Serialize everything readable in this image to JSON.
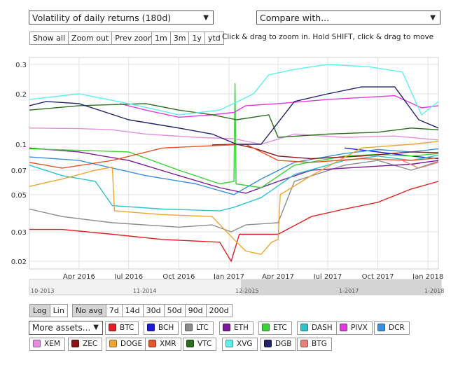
{
  "controls": {
    "metric_select": "Volatility of daily returns (180d)",
    "compare_select": "Compare with...",
    "zoom_buttons": [
      "Show all",
      "Zoom out",
      "Prev zoom"
    ],
    "range_buttons": [
      "1m",
      "3m",
      "1y",
      "ytd"
    ],
    "hint": "Click & drag to zoom in. Hold SHIFT, click & drag to move",
    "scale_buttons": [
      "Log",
      "Lin"
    ],
    "avg_buttons": [
      "No avg",
      "7d",
      "14d",
      "30d",
      "50d",
      "90d",
      "200d"
    ],
    "more_assets": "More assets..."
  },
  "assets": [
    {
      "label": "BTC",
      "color": "#e02020"
    },
    {
      "label": "BCH",
      "color": "#1c1cd6"
    },
    {
      "label": "LTC",
      "color": "#8c8c8c"
    },
    {
      "label": "ETH",
      "color": "#7b1a9a"
    },
    {
      "label": "ETC",
      "color": "#3ad43a"
    },
    {
      "label": "DASH",
      "color": "#2cc4c9"
    },
    {
      "label": "PIVX",
      "color": "#e03ae0"
    },
    {
      "label": "DCR",
      "color": "#3a8fe0"
    },
    {
      "label": "XEM",
      "color": "#e58ee0"
    },
    {
      "label": "ZEC",
      "color": "#8a1515"
    },
    {
      "label": "DOGE",
      "color": "#f0a530"
    },
    {
      "label": "XMR",
      "color": "#e8542a"
    },
    {
      "label": "VTC",
      "color": "#2a6e1e"
    },
    {
      "label": "XVG",
      "color": "#5ef0ee"
    },
    {
      "label": "DGB",
      "color": "#23236a"
    },
    {
      "label": "BTG",
      "color": "#e8807a"
    }
  ],
  "chart_data": {
    "type": "line",
    "scale": "log",
    "ylim": [
      0.018,
      0.33
    ],
    "xlim": [
      "2016-01-01",
      "2018-01-20"
    ],
    "yticks": [
      {
        "value": 0.3,
        "label": "0.3"
      },
      {
        "value": 0.2,
        "label": "0.2"
      },
      {
        "value": 0.1,
        "label": "0.1"
      },
      {
        "value": 0.07,
        "label": "0.07"
      },
      {
        "value": 0.05,
        "label": "0.05"
      },
      {
        "value": 0.03,
        "label": "0.03"
      },
      {
        "value": 0.02,
        "label": "0.02"
      }
    ],
    "xticks": [
      {
        "date": "2016-04-01",
        "label": "Apr 2016"
      },
      {
        "date": "2016-07-01",
        "label": "Jul 2016"
      },
      {
        "date": "2016-10-01",
        "label": "Oct 2016"
      },
      {
        "date": "2017-01-01",
        "label": "Jan 2017"
      },
      {
        "date": "2017-04-01",
        "label": "Apr 2017"
      },
      {
        "date": "2017-07-01",
        "label": "Jul 2017"
      },
      {
        "date": "2017-10-01",
        "label": "Oct 2017"
      },
      {
        "date": "2018-01-01",
        "label": "Jan 2018"
      }
    ],
    "navigator_labels": [
      "10-2013",
      "11-2014",
      "12-2015",
      "1-2017",
      "1-2018"
    ],
    "grid": true,
    "series": [
      {
        "name": "BTC",
        "color": "#e02020",
        "points": [
          [
            "2016-01-01",
            0.031
          ],
          [
            "2016-03-01",
            0.031
          ],
          [
            "2016-06-01",
            0.029
          ],
          [
            "2016-09-01",
            0.027
          ],
          [
            "2016-12-15",
            0.026
          ],
          [
            "2017-01-05",
            0.02
          ],
          [
            "2017-01-20",
            0.029
          ],
          [
            "2017-04-01",
            0.029
          ],
          [
            "2017-06-01",
            0.037
          ],
          [
            "2017-08-01",
            0.041
          ],
          [
            "2017-10-01",
            0.045
          ],
          [
            "2017-12-01",
            0.054
          ],
          [
            "2018-01-20",
            0.06
          ]
        ]
      },
      {
        "name": "BCH",
        "color": "#1c1cd6",
        "points": [
          [
            "2017-08-01",
            0.095
          ],
          [
            "2017-10-01",
            0.09
          ],
          [
            "2017-12-01",
            0.085
          ],
          [
            "2018-01-20",
            0.082
          ]
        ]
      },
      {
        "name": "LTC",
        "color": "#8c8c8c",
        "points": [
          [
            "2016-01-01",
            0.041
          ],
          [
            "2016-03-01",
            0.037
          ],
          [
            "2016-06-01",
            0.034
          ],
          [
            "2016-10-01",
            0.032
          ],
          [
            "2016-12-01",
            0.033
          ],
          [
            "2017-01-05",
            0.03
          ],
          [
            "2017-02-01",
            0.033
          ],
          [
            "2017-04-01",
            0.034
          ],
          [
            "2017-05-01",
            0.06
          ],
          [
            "2017-08-01",
            0.075
          ],
          [
            "2017-10-01",
            0.08
          ],
          [
            "2017-12-01",
            0.07
          ],
          [
            "2018-01-20",
            0.079
          ]
        ]
      },
      {
        "name": "ETH",
        "color": "#7b1a9a",
        "points": [
          [
            "2016-01-01",
            0.095
          ],
          [
            "2016-04-01",
            0.09
          ],
          [
            "2016-07-01",
            0.08
          ],
          [
            "2016-10-01",
            0.065
          ],
          [
            "2016-12-15",
            0.055
          ],
          [
            "2017-02-01",
            0.051
          ],
          [
            "2017-04-01",
            0.06
          ],
          [
            "2017-06-01",
            0.07
          ],
          [
            "2017-08-01",
            0.072
          ],
          [
            "2017-10-01",
            0.074
          ],
          [
            "2017-12-01",
            0.076
          ],
          [
            "2018-01-20",
            0.08
          ]
        ]
      },
      {
        "name": "ETC",
        "color": "#3ad43a",
        "points": [
          [
            "2016-01-01",
            0.094
          ],
          [
            "2016-07-01",
            0.09
          ],
          [
            "2016-10-01",
            0.07
          ],
          [
            "2016-12-15",
            0.058
          ],
          [
            "2017-01-10",
            0.06
          ],
          [
            "2017-01-12",
            0.23
          ],
          [
            "2017-01-14",
            0.058
          ],
          [
            "2017-03-01",
            0.055
          ],
          [
            "2017-05-01",
            0.075
          ],
          [
            "2017-08-01",
            0.085
          ],
          [
            "2017-10-01",
            0.087
          ],
          [
            "2017-12-01",
            0.085
          ],
          [
            "2018-01-20",
            0.088
          ]
        ]
      },
      {
        "name": "DASH",
        "color": "#2cc4c9",
        "points": [
          [
            "2016-01-01",
            0.075
          ],
          [
            "2016-03-01",
            0.065
          ],
          [
            "2016-05-01",
            0.06
          ],
          [
            "2016-06-01",
            0.043
          ],
          [
            "2016-09-01",
            0.041
          ],
          [
            "2016-12-15",
            0.04
          ],
          [
            "2017-01-10",
            0.042
          ],
          [
            "2017-03-01",
            0.048
          ],
          [
            "2017-05-01",
            0.066
          ],
          [
            "2017-08-01",
            0.08
          ],
          [
            "2017-10-01",
            0.085
          ],
          [
            "2017-12-01",
            0.08
          ],
          [
            "2018-01-20",
            0.086
          ]
        ]
      },
      {
        "name": "PIVX",
        "color": "#e03ae0",
        "points": [
          [
            "2016-06-15",
            0.175
          ],
          [
            "2016-08-01",
            0.16
          ],
          [
            "2016-10-01",
            0.145
          ],
          [
            "2016-12-01",
            0.15
          ],
          [
            "2017-01-10",
            0.155
          ],
          [
            "2017-02-01",
            0.17
          ],
          [
            "2017-04-01",
            0.175
          ],
          [
            "2017-07-01",
            0.185
          ],
          [
            "2017-09-01",
            0.19
          ],
          [
            "2017-11-01",
            0.195
          ],
          [
            "2017-12-20",
            0.165
          ],
          [
            "2018-01-20",
            0.17
          ]
        ]
      },
      {
        "name": "DCR",
        "color": "#3a8fe0",
        "points": [
          [
            "2016-01-01",
            0.084
          ],
          [
            "2016-04-01",
            0.08
          ],
          [
            "2016-08-01",
            0.065
          ],
          [
            "2016-11-01",
            0.058
          ],
          [
            "2017-01-10",
            0.05
          ],
          [
            "2017-03-01",
            0.062
          ],
          [
            "2017-05-01",
            0.078
          ],
          [
            "2017-08-01",
            0.088
          ],
          [
            "2017-10-01",
            0.093
          ],
          [
            "2017-12-01",
            0.09
          ],
          [
            "2018-01-20",
            0.094
          ]
        ]
      },
      {
        "name": "XEM",
        "color": "#e58ee0",
        "points": [
          [
            "2016-01-01",
            0.125
          ],
          [
            "2016-04-01",
            0.124
          ],
          [
            "2016-06-01",
            0.122
          ],
          [
            "2016-08-01",
            0.115
          ],
          [
            "2016-11-01",
            0.11
          ],
          [
            "2017-01-10",
            0.108
          ],
          [
            "2017-03-01",
            0.1
          ],
          [
            "2017-05-01",
            0.115
          ],
          [
            "2017-08-01",
            0.11
          ],
          [
            "2017-11-01",
            0.112
          ],
          [
            "2018-01-20",
            0.106
          ]
        ]
      },
      {
        "name": "ZEC",
        "color": "#8a1515",
        "points": [
          [
            "2016-12-01",
            0.099
          ],
          [
            "2017-01-15",
            0.1
          ],
          [
            "2017-02-15",
            0.095
          ],
          [
            "2017-04-01",
            0.085
          ],
          [
            "2017-06-01",
            0.082
          ],
          [
            "2017-09-01",
            0.085
          ],
          [
            "2017-12-01",
            0.09
          ],
          [
            "2018-01-20",
            0.089
          ]
        ]
      },
      {
        "name": "DOGE",
        "color": "#f0a530",
        "points": [
          [
            "2016-01-01",
            0.056
          ],
          [
            "2016-03-01",
            0.062
          ],
          [
            "2016-05-01",
            0.07
          ],
          [
            "2016-06-01",
            0.073
          ],
          [
            "2016-06-05",
            0.04
          ],
          [
            "2016-09-01",
            0.038
          ],
          [
            "2016-12-01",
            0.037
          ],
          [
            "2017-01-15",
            0.026
          ],
          [
            "2017-02-01",
            0.023
          ],
          [
            "2017-03-01",
            0.022
          ],
          [
            "2017-03-20",
            0.026
          ],
          [
            "2017-04-01",
            0.027
          ],
          [
            "2017-04-05",
            0.05
          ],
          [
            "2017-06-01",
            0.065
          ],
          [
            "2017-09-01",
            0.095
          ],
          [
            "2017-12-01",
            0.1
          ],
          [
            "2018-01-20",
            0.104
          ]
        ]
      },
      {
        "name": "XMR",
        "color": "#e8542a",
        "points": [
          [
            "2016-01-01",
            0.078
          ],
          [
            "2016-03-01",
            0.072
          ],
          [
            "2016-06-01",
            0.08
          ],
          [
            "2016-09-01",
            0.095
          ],
          [
            "2016-12-01",
            0.098
          ],
          [
            "2017-02-01",
            0.1
          ],
          [
            "2017-04-01",
            0.08
          ],
          [
            "2017-06-01",
            0.078
          ],
          [
            "2017-09-01",
            0.082
          ],
          [
            "2017-12-01",
            0.08
          ],
          [
            "2018-01-20",
            0.083
          ]
        ]
      },
      {
        "name": "VTC",
        "color": "#2a6e1e",
        "points": [
          [
            "2016-01-01",
            0.16
          ],
          [
            "2016-04-01",
            0.17
          ],
          [
            "2016-08-01",
            0.175
          ],
          [
            "2016-10-01",
            0.16
          ],
          [
            "2016-12-01",
            0.15
          ],
          [
            "2017-01-15",
            0.14
          ],
          [
            "2017-03-15",
            0.15
          ],
          [
            "2017-04-01",
            0.11
          ],
          [
            "2017-07-01",
            0.115
          ],
          [
            "2017-10-01",
            0.118
          ],
          [
            "2017-12-01",
            0.125
          ],
          [
            "2018-01-20",
            0.122
          ]
        ]
      },
      {
        "name": "XVG",
        "color": "#5ef0ee",
        "points": [
          [
            "2016-01-01",
            0.185
          ],
          [
            "2016-04-01",
            0.2
          ],
          [
            "2016-07-01",
            0.175
          ],
          [
            "2016-10-01",
            0.15
          ],
          [
            "2016-12-15",
            0.16
          ],
          [
            "2017-02-15",
            0.2
          ],
          [
            "2017-03-15",
            0.26
          ],
          [
            "2017-05-01",
            0.28
          ],
          [
            "2017-07-01",
            0.3
          ],
          [
            "2017-09-15",
            0.29
          ],
          [
            "2017-11-15",
            0.27
          ],
          [
            "2017-12-20",
            0.15
          ],
          [
            "2018-01-20",
            0.18
          ]
        ]
      },
      {
        "name": "DGB",
        "color": "#23236a",
        "points": [
          [
            "2016-01-01",
            0.17
          ],
          [
            "2016-02-01",
            0.18
          ],
          [
            "2016-04-01",
            0.175
          ],
          [
            "2016-07-01",
            0.14
          ],
          [
            "2016-10-01",
            0.125
          ],
          [
            "2016-12-01",
            0.115
          ],
          [
            "2017-01-15",
            0.1
          ],
          [
            "2017-03-01",
            0.1
          ],
          [
            "2017-05-01",
            0.18
          ],
          [
            "2017-07-01",
            0.2
          ],
          [
            "2017-09-01",
            0.22
          ],
          [
            "2017-11-01",
            0.22
          ],
          [
            "2017-12-15",
            0.14
          ],
          [
            "2018-01-20",
            0.125
          ]
        ]
      },
      {
        "name": "BTG",
        "color": "#e8807a",
        "points": [
          [
            "2017-11-15",
            0.08
          ],
          [
            "2017-12-15",
            0.072
          ],
          [
            "2018-01-20",
            0.078
          ]
        ]
      }
    ]
  }
}
